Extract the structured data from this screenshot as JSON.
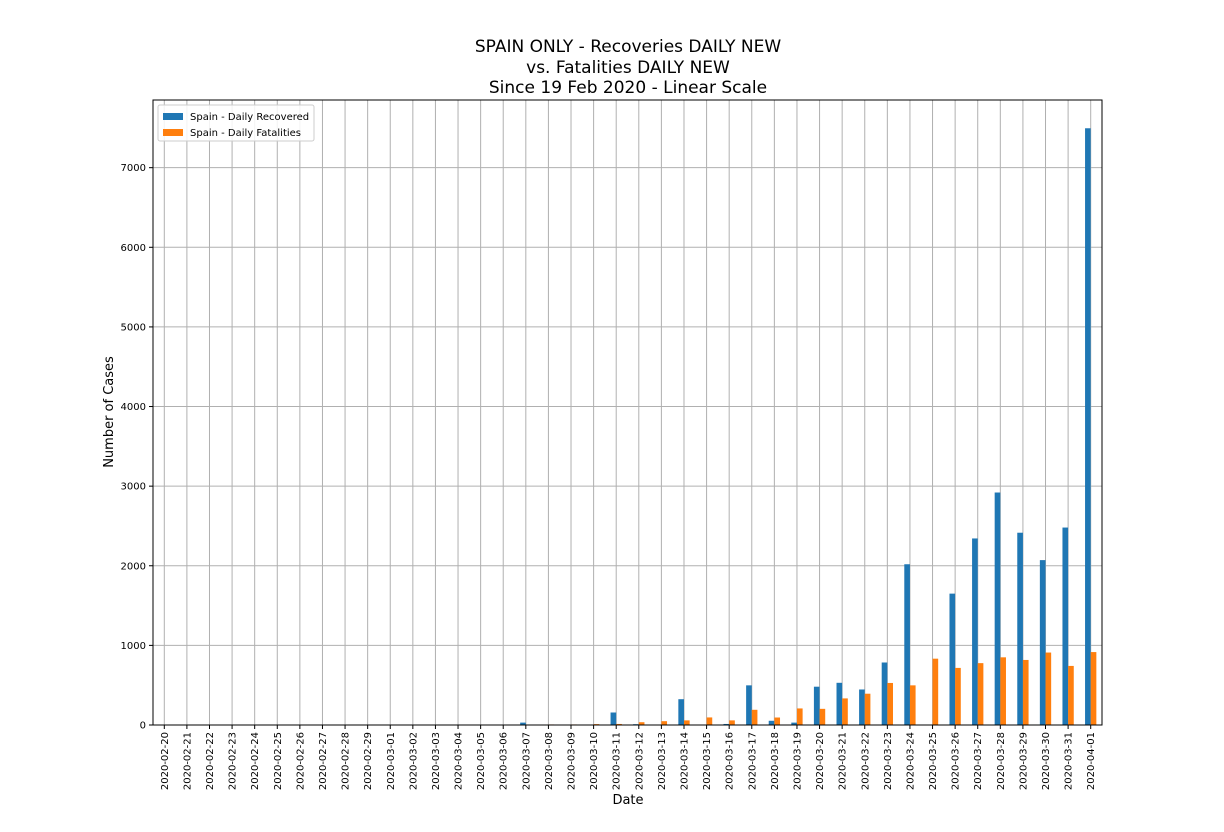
{
  "chart_data": {
    "type": "bar",
    "title_lines": [
      "SPAIN ONLY - Recoveries DAILY NEW",
      "vs. Fatalities DAILY NEW",
      "Since 19 Feb 2020 - Linear Scale"
    ],
    "xlabel": "Date",
    "ylabel": "Number of Cases",
    "ylim": [
      0,
      7850
    ],
    "yticks": [
      0,
      1000,
      2000,
      3000,
      4000,
      5000,
      6000,
      7000
    ],
    "grid": true,
    "legend_position": "top-left",
    "categories": [
      "2020-02-20",
      "2020-02-21",
      "2020-02-22",
      "2020-02-23",
      "2020-02-24",
      "2020-02-25",
      "2020-02-26",
      "2020-02-27",
      "2020-02-28",
      "2020-02-29",
      "2020-03-01",
      "2020-03-02",
      "2020-03-03",
      "2020-03-04",
      "2020-03-05",
      "2020-03-06",
      "2020-03-07",
      "2020-03-08",
      "2020-03-09",
      "2020-03-10",
      "2020-03-11",
      "2020-03-12",
      "2020-03-13",
      "2020-03-14",
      "2020-03-15",
      "2020-03-16",
      "2020-03-17",
      "2020-03-18",
      "2020-03-19",
      "2020-03-20",
      "2020-03-21",
      "2020-03-22",
      "2020-03-23",
      "2020-03-24",
      "2020-03-25",
      "2020-03-26",
      "2020-03-27",
      "2020-03-28",
      "2020-03-29",
      "2020-03-30",
      "2020-03-31",
      "2020-04-01"
    ],
    "series": [
      {
        "name": "Spain - Daily Recovered",
        "color": "#1f77b4",
        "values": [
          0,
          0,
          0,
          0,
          0,
          0,
          0,
          0,
          0,
          0,
          0,
          0,
          0,
          0,
          0,
          0,
          30,
          0,
          1,
          0,
          157,
          10,
          4,
          324,
          0,
          13,
          498,
          53,
          30,
          481,
          530,
          446,
          785,
          2019,
          0,
          1650,
          2343,
          2920,
          2415,
          2071,
          2480,
          7495
        ]
      },
      {
        "name": "Spain - Daily Fatalities",
        "color": "#ff7f0e",
        "values": [
          0,
          0,
          0,
          0,
          0,
          0,
          0,
          0,
          0,
          0,
          0,
          0,
          1,
          1,
          1,
          2,
          5,
          7,
          7,
          11,
          13,
          35,
          48,
          58,
          95,
          58,
          191,
          94,
          208,
          203,
          334,
          393,
          528,
          498,
          833,
          717,
          777,
          850,
          817,
          910,
          742,
          916
        ]
      }
    ]
  }
}
